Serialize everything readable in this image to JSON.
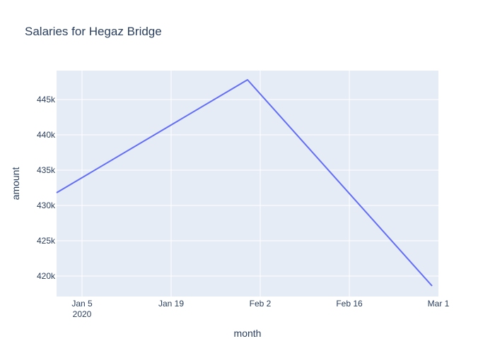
{
  "chart_data": {
    "type": "line",
    "title": "Salaries for Hegaz Bridge",
    "xlabel": "month",
    "ylabel": "amount",
    "x": [
      "2020-01-01",
      "2020-01-31",
      "2020-02-29"
    ],
    "series": [
      {
        "values": [
          431800,
          447800,
          418600
        ],
        "color": "#636efa"
      }
    ],
    "xlim": [
      "2020-01-01",
      "2020-03-01"
    ],
    "ylim": [
      417100,
      449100
    ],
    "xticks": [
      {
        "date": "2020-01-05",
        "label": "Jan 5",
        "sublabel": "2020"
      },
      {
        "date": "2020-01-19",
        "label": "Jan 19",
        "sublabel": ""
      },
      {
        "date": "2020-02-02",
        "label": "Feb 2",
        "sublabel": ""
      },
      {
        "date": "2020-02-16",
        "label": "Feb 16",
        "sublabel": ""
      },
      {
        "date": "2020-03-01",
        "label": "Mar 1",
        "sublabel": ""
      }
    ],
    "yticks": [
      {
        "value": 420000,
        "label": "420k"
      },
      {
        "value": 425000,
        "label": "425k"
      },
      {
        "value": 430000,
        "label": "430k"
      },
      {
        "value": 435000,
        "label": "435k"
      },
      {
        "value": 440000,
        "label": "440k"
      },
      {
        "value": 445000,
        "label": "445k"
      }
    ],
    "grid": true,
    "plot_bgcolor": "#e5ecf6",
    "grid_color": "#ffffff",
    "text_color": "#2a3f5f"
  }
}
